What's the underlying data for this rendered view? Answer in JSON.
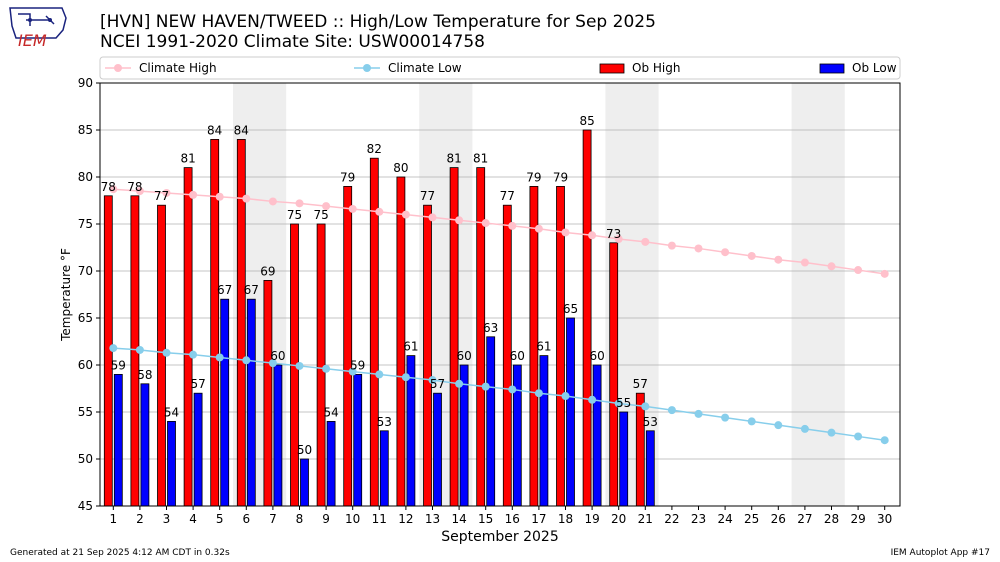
{
  "header": {
    "title_line1": "[HVN] NEW HAVEN/TWEED :: High/Low Temperature for Sep 2025",
    "title_line2": "NCEI 1991-2020 Climate Site: USW00014758",
    "logo_text": "IEM"
  },
  "footer": {
    "left": "Generated at 21 Sep 2025 4:12 AM CDT in 0.32s",
    "right": "IEM Autoplot App #17"
  },
  "colors": {
    "ob_high": "#ff0000",
    "ob_low": "#0000ff",
    "climate_high": "#ffc0cb",
    "climate_low": "#87ceeb",
    "weekend_shade": "#eeeeee"
  },
  "chart_data": {
    "type": "bar",
    "xlabel": "September 2025",
    "ylabel": "Temperature °F",
    "xlim": [
      1,
      30
    ],
    "ylim": [
      45,
      90
    ],
    "yticks": [
      45,
      50,
      55,
      60,
      65,
      70,
      75,
      80,
      85,
      90
    ],
    "grid": "horizontal",
    "legend_placement": "top",
    "legend": [
      "Climate High",
      "Climate Low",
      "Ob High",
      "Ob Low"
    ],
    "days": [
      1,
      2,
      3,
      4,
      5,
      6,
      7,
      8,
      9,
      10,
      11,
      12,
      13,
      14,
      15,
      16,
      17,
      18,
      19,
      20,
      21,
      22,
      23,
      24,
      25,
      26,
      27,
      28,
      29,
      30
    ],
    "weekend_spans": [
      [
        6,
        7
      ],
      [
        13,
        14
      ],
      [
        20,
        21
      ],
      [
        27,
        28
      ]
    ],
    "series": [
      {
        "name": "Ob High",
        "kind": "bar",
        "values": [
          78,
          78,
          77,
          81,
          84,
          84,
          69,
          75,
          75,
          79,
          82,
          80,
          77,
          81,
          81,
          77,
          79,
          79,
          85,
          73,
          57
        ]
      },
      {
        "name": "Ob Low",
        "kind": "bar",
        "values": [
          59,
          58,
          54,
          57,
          67,
          67,
          60,
          50,
          54,
          59,
          53,
          61,
          57,
          60,
          63,
          60,
          61,
          65,
          60,
          55,
          53
        ]
      },
      {
        "name": "Climate High",
        "kind": "line",
        "values": [
          78.7,
          78.5,
          78.3,
          78.1,
          77.9,
          77.7,
          77.4,
          77.2,
          76.9,
          76.6,
          76.3,
          76.0,
          75.7,
          75.4,
          75.1,
          74.8,
          74.5,
          74.1,
          73.8,
          73.4,
          73.1,
          72.7,
          72.4,
          72.0,
          71.6,
          71.2,
          70.9,
          70.5,
          70.1,
          69.7
        ]
      },
      {
        "name": "Climate Low",
        "kind": "line",
        "values": [
          61.8,
          61.6,
          61.3,
          61.1,
          60.8,
          60.5,
          60.2,
          59.9,
          59.6,
          59.3,
          59.0,
          58.7,
          58.4,
          58.0,
          57.7,
          57.4,
          57.0,
          56.7,
          56.3,
          55.9,
          55.6,
          55.2,
          54.8,
          54.4,
          54.0,
          53.6,
          53.2,
          52.8,
          52.4,
          52.0
        ]
      }
    ]
  }
}
